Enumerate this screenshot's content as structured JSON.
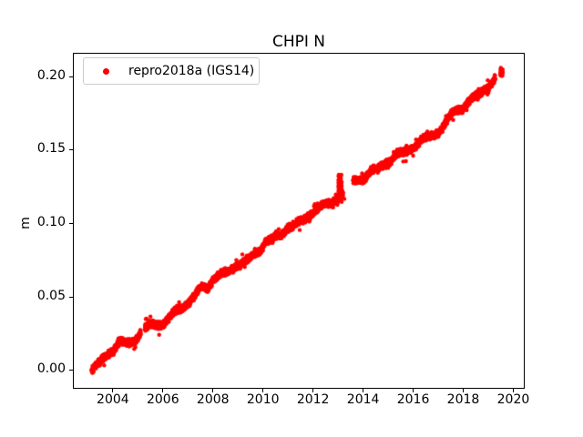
{
  "window": {
    "background": "#ffffff"
  },
  "chart_data": {
    "type": "scatter",
    "title": "CHPI N",
    "xlabel": "",
    "ylabel": "m",
    "xlim": [
      2002.44,
      2020.42
    ],
    "ylim": [
      -0.01235,
      0.21544
    ],
    "grid": false,
    "point_color": "#ff0000",
    "xticks": [
      {
        "label": "2004",
        "value": 2004
      },
      {
        "label": "2006",
        "value": 2006
      },
      {
        "label": "2008",
        "value": 2008
      },
      {
        "label": "2010",
        "value": 2010
      },
      {
        "label": "2012",
        "value": 2012
      },
      {
        "label": "2014",
        "value": 2014
      },
      {
        "label": "2016",
        "value": 2016
      },
      {
        "label": "2018",
        "value": 2018
      },
      {
        "label": "2020",
        "value": 2020
      }
    ],
    "yticks": [
      {
        "label": "0.00",
        "value": 0.0
      },
      {
        "label": "0.05",
        "value": 0.05
      },
      {
        "label": "0.10",
        "value": 0.1
      },
      {
        "label": "0.15",
        "value": 0.15
      },
      {
        "label": "0.20",
        "value": 0.2
      }
    ],
    "legend": {
      "position": "upper left",
      "entries": [
        {
          "label": "repro2018a (IGS14)",
          "marker": "dot",
          "color": "#ff0000"
        }
      ]
    },
    "series": [
      {
        "name": "repro2018a (IGS14)",
        "color": "#ff0000",
        "marker": "point",
        "marker_radius_px": 2.2,
        "sample_step_years": 0.004,
        "band_halfwidth_m": 0.0018,
        "seasonal_amplitude_m": 0.0012,
        "segments": [
          {
            "anchors": [
              [
                2003.15,
                0.0005
              ],
              [
                2003.3,
                0.002
              ],
              [
                2003.5,
                0.005
              ],
              [
                2003.7,
                0.009
              ],
              [
                2003.9,
                0.012
              ],
              [
                2004.05,
                0.0145
              ],
              [
                2004.2,
                0.018
              ],
              [
                2004.35,
                0.019
              ],
              [
                2004.5,
                0.017
              ],
              [
                2004.7,
                0.018
              ],
              [
                2004.9,
                0.021
              ],
              [
                2005.0,
                0.023
              ],
              [
                2005.12,
                0.027
              ]
            ]
          },
          {
            "anchors": [
              [
                2005.28,
                0.028
              ],
              [
                2005.45,
                0.0295
              ],
              [
                2005.65,
                0.03
              ],
              [
                2005.9,
                0.031
              ],
              [
                2006.1,
                0.033
              ],
              [
                2006.4,
                0.038
              ],
              [
                2006.7,
                0.041
              ],
              [
                2007.0,
                0.046
              ],
              [
                2007.25,
                0.05
              ],
              [
                2007.5,
                0.055
              ],
              [
                2007.8,
                0.056
              ],
              [
                2008.0,
                0.062
              ],
              [
                2008.3,
                0.065
              ],
              [
                2008.6,
                0.066
              ],
              [
                2009.0,
                0.072
              ],
              [
                2009.3,
                0.074
              ],
              [
                2009.6,
                0.077
              ],
              [
                2009.9,
                0.082
              ],
              [
                2010.1,
                0.088
              ],
              [
                2010.4,
                0.089
              ],
              [
                2010.7,
                0.091
              ],
              [
                2011.0,
                0.098
              ],
              [
                2011.3,
                0.099
              ],
              [
                2011.6,
                0.101
              ],
              [
                2011.9,
                0.106
              ],
              [
                2012.1,
                0.11
              ],
              [
                2012.4,
                0.112
              ],
              [
                2012.7,
                0.113
              ],
              [
                2012.95,
                0.117
              ],
              [
                2013.2,
                0.121
              ]
            ]
          },
          {
            "anchors": [
              [
                2013.6,
                0.128
              ],
              [
                2013.8,
                0.13
              ],
              [
                2014.05,
                0.131
              ],
              [
                2014.3,
                0.135
              ],
              [
                2014.6,
                0.137
              ],
              [
                2014.9,
                0.141
              ],
              [
                2015.1,
                0.143
              ],
              [
                2015.35,
                0.147
              ],
              [
                2015.6,
                0.147
              ],
              [
                2015.9,
                0.151
              ],
              [
                2016.1,
                0.153
              ],
              [
                2016.35,
                0.157
              ],
              [
                2016.6,
                0.158
              ],
              [
                2016.85,
                0.161
              ],
              [
                2017.05,
                0.163
              ],
              [
                2017.25,
                0.167
              ],
              [
                2017.5,
                0.173
              ],
              [
                2017.7,
                0.177
              ],
              [
                2017.95,
                0.178
              ],
              [
                2018.15,
                0.182
              ],
              [
                2018.4,
                0.185
              ],
              [
                2018.6,
                0.187
              ],
              [
                2018.85,
                0.191
              ],
              [
                2019.05,
                0.194
              ],
              [
                2019.28,
                0.198
              ]
            ]
          }
        ],
        "clusters": [
          {
            "x_center": 2013.08,
            "x_spread": 0.14,
            "y_min": 0.118,
            "y_max": 0.133,
            "points": 50
          },
          {
            "x_center": 2019.53,
            "x_spread": 0.1,
            "y_min": 0.2,
            "y_max": 0.206,
            "points": 22
          }
        ],
        "outliers": [
          [
            2004.9,
            0.0155
          ],
          [
            2013.25,
            0.1165
          ]
        ]
      }
    ]
  }
}
